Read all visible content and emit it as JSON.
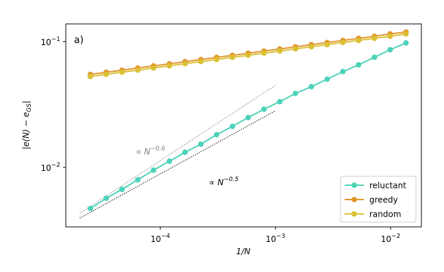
{
  "chart_data": {
    "type": "line",
    "panel_label": "a)",
    "xlabel": "1/N",
    "ylabel": {
      "main": "|e(N) − e",
      "sub": "GS",
      "end": "|"
    },
    "xscale": "log",
    "yscale": "log",
    "xlim": [
      1.51e-05,
      0.0185
    ],
    "ylim": [
      0.00337,
      0.138
    ],
    "xticks": [
      {
        "value": 0.0001,
        "label": "10",
        "exponent": "−4"
      },
      {
        "value": 0.001,
        "label": "10",
        "exponent": "−3"
      },
      {
        "value": 0.01,
        "label": "10",
        "exponent": "−2"
      }
    ],
    "yticks": [
      {
        "value": 0.01,
        "label": "10",
        "exponent": "−2"
      },
      {
        "value": 0.1,
        "label": "10",
        "exponent": "−1"
      }
    ],
    "legend": "lower right",
    "x": [
      2.47e-05,
      3.39e-05,
      4.65e-05,
      6.37e-05,
      8.73e-05,
      0.00012,
      0.000164,
      0.000225,
      0.000308,
      0.000423,
      0.000579,
      0.000794,
      0.00109,
      0.00149,
      0.00205,
      0.00281,
      0.00385,
      0.00527,
      0.00723,
      0.00991,
      0.0136
    ],
    "series": [
      {
        "name": "reluctant",
        "color": "#4cd3b9",
        "values": [
          0.00472,
          0.00569,
          0.0067,
          0.00798,
          0.00951,
          0.0112,
          0.0132,
          0.0153,
          0.0182,
          0.0212,
          0.0249,
          0.029,
          0.0333,
          0.0387,
          0.0438,
          0.0502,
          0.0577,
          0.0653,
          0.075,
          0.0861,
          0.0975
        ]
      },
      {
        "name": "greedy",
        "color": "#e0962c",
        "values": [
          0.0548,
          0.057,
          0.0592,
          0.0616,
          0.064,
          0.0665,
          0.0692,
          0.0719,
          0.0748,
          0.0777,
          0.0808,
          0.084,
          0.0873,
          0.0908,
          0.0944,
          0.0981,
          0.102,
          0.106,
          0.11,
          0.115,
          0.119
        ]
      },
      {
        "name": "random",
        "color": "#dbc033",
        "values": [
          0.0528,
          0.0549,
          0.0571,
          0.0593,
          0.0617,
          0.0641,
          0.0667,
          0.0693,
          0.072,
          0.0749,
          0.0778,
          0.0809,
          0.0841,
          0.0875,
          0.0909,
          0.0945,
          0.0983,
          0.102,
          0.106,
          0.11,
          0.115
        ]
      }
    ],
    "reference_lines": [
      {
        "text": "∝ N",
        "exponent": "−0.6",
        "color": "#808080",
        "x": [
          2e-05,
          0.001
        ],
        "values": [
          0.00433,
          0.0449
        ]
      },
      {
        "text": "∝ N",
        "exponent": "−0.5",
        "color": "#000000",
        "x": [
          2e-05,
          0.001
        ],
        "values": [
          0.00396,
          0.0282
        ]
      }
    ]
  }
}
